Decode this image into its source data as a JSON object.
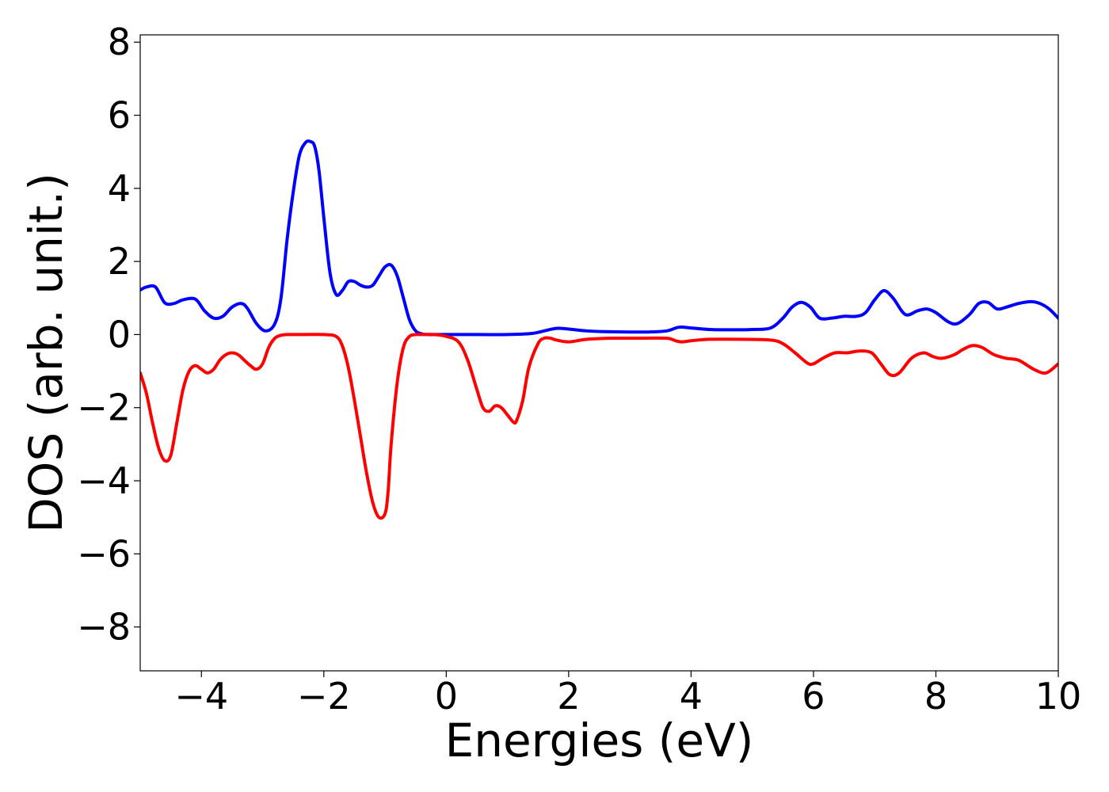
{
  "chart_data": {
    "type": "line",
    "title": "",
    "xlabel": "Energies (eV)",
    "ylabel": "DOS (arb. unit.)",
    "xlim": [
      -5,
      10
    ],
    "ylim": [
      -9.2,
      8.2
    ],
    "grid": false,
    "legend": "none",
    "x_ticks": [
      -4,
      -2,
      0,
      2,
      4,
      6,
      8,
      10
    ],
    "x_tick_labels": [
      "−4",
      "−2",
      "0",
      "2",
      "4",
      "6",
      "8",
      "10"
    ],
    "y_ticks": [
      -8,
      -6,
      -4,
      -2,
      0,
      2,
      4,
      6,
      8
    ],
    "y_tick_labels": [
      "−8",
      "−6",
      "−4",
      "−2",
      "0",
      "2",
      "4",
      "6",
      "8"
    ],
    "series": [
      {
        "color": "#0000ff",
        "x": [
          -5.0,
          -4.9,
          -4.75,
          -4.6,
          -4.45,
          -4.3,
          -4.1,
          -3.95,
          -3.8,
          -3.65,
          -3.5,
          -3.35,
          -3.25,
          -3.1,
          -2.95,
          -2.8,
          -2.7,
          -2.6,
          -2.5,
          -2.4,
          -2.3,
          -2.22,
          -2.15,
          -2.08,
          -2.0,
          -1.9,
          -1.8,
          -1.7,
          -1.6,
          -1.5,
          -1.4,
          -1.3,
          -1.2,
          -1.1,
          -1.0,
          -0.9,
          -0.8,
          -0.7,
          -0.6,
          -0.5,
          -0.4,
          -0.3,
          -0.2,
          0.0,
          0.5,
          1.0,
          1.4,
          1.6,
          1.8,
          2.0,
          2.3,
          2.6,
          3.0,
          3.3,
          3.6,
          3.8,
          4.0,
          4.3,
          4.7,
          5.0,
          5.3,
          5.5,
          5.65,
          5.8,
          5.95,
          6.1,
          6.3,
          6.5,
          6.7,
          6.85,
          7.0,
          7.15,
          7.3,
          7.5,
          7.7,
          7.85,
          8.0,
          8.2,
          8.35,
          8.55,
          8.7,
          8.85,
          9.0,
          9.15,
          9.35,
          9.55,
          9.7,
          9.85,
          10.0
        ],
        "y": [
          1.22,
          1.3,
          1.3,
          0.87,
          0.85,
          0.95,
          0.97,
          0.65,
          0.45,
          0.5,
          0.75,
          0.85,
          0.72,
          0.3,
          0.1,
          0.3,
          1.0,
          2.6,
          3.9,
          4.9,
          5.25,
          5.28,
          5.15,
          4.5,
          3.2,
          1.7,
          1.1,
          1.2,
          1.45,
          1.45,
          1.35,
          1.3,
          1.35,
          1.6,
          1.85,
          1.9,
          1.6,
          1.0,
          0.4,
          0.1,
          0.02,
          0.0,
          0.0,
          0.0,
          0.0,
          0.0,
          0.03,
          0.1,
          0.17,
          0.15,
          0.1,
          0.08,
          0.07,
          0.07,
          0.1,
          0.2,
          0.18,
          0.14,
          0.13,
          0.14,
          0.18,
          0.45,
          0.75,
          0.88,
          0.75,
          0.45,
          0.45,
          0.5,
          0.5,
          0.6,
          0.95,
          1.2,
          1.0,
          0.55,
          0.65,
          0.7,
          0.6,
          0.35,
          0.3,
          0.55,
          0.85,
          0.88,
          0.7,
          0.75,
          0.85,
          0.9,
          0.85,
          0.7,
          0.45
        ]
      },
      {
        "color": "#ff0000",
        "x": [
          -5.0,
          -4.9,
          -4.8,
          -4.7,
          -4.6,
          -4.5,
          -4.4,
          -4.3,
          -4.2,
          -4.1,
          -4.0,
          -3.9,
          -3.8,
          -3.7,
          -3.6,
          -3.5,
          -3.4,
          -3.3,
          -3.2,
          -3.1,
          -3.0,
          -2.9,
          -2.8,
          -2.7,
          -2.6,
          -2.5,
          -2.4,
          -2.0,
          -1.8,
          -1.7,
          -1.6,
          -1.5,
          -1.4,
          -1.3,
          -1.2,
          -1.1,
          -1.0,
          -0.95,
          -0.9,
          -0.8,
          -0.7,
          -0.6,
          -0.5,
          -0.4,
          -0.2,
          0.0,
          0.2,
          0.35,
          0.5,
          0.6,
          0.7,
          0.8,
          0.9,
          1.0,
          1.1,
          1.15,
          1.25,
          1.35,
          1.5,
          1.6,
          1.7,
          1.8,
          2.0,
          2.3,
          2.7,
          3.2,
          3.6,
          3.75,
          3.85,
          4.0,
          4.3,
          4.8,
          5.3,
          5.5,
          5.7,
          5.9,
          6.0,
          6.15,
          6.35,
          6.55,
          6.75,
          6.95,
          7.1,
          7.25,
          7.4,
          7.6,
          7.8,
          7.95,
          8.1,
          8.3,
          8.45,
          8.6,
          8.75,
          8.95,
          9.15,
          9.35,
          9.6,
          9.8,
          10.0
        ],
        "y": [
          -1.05,
          -1.6,
          -2.4,
          -3.1,
          -3.45,
          -3.3,
          -2.4,
          -1.5,
          -1.0,
          -0.85,
          -0.95,
          -1.05,
          -0.95,
          -0.7,
          -0.55,
          -0.5,
          -0.55,
          -0.7,
          -0.85,
          -0.95,
          -0.8,
          -0.35,
          -0.1,
          -0.02,
          0.0,
          0.0,
          0.0,
          0.0,
          -0.05,
          -0.3,
          -0.9,
          -1.8,
          -2.8,
          -3.8,
          -4.6,
          -5.0,
          -4.9,
          -4.3,
          -3.0,
          -1.3,
          -0.35,
          -0.05,
          0.0,
          0.0,
          0.0,
          -0.05,
          -0.2,
          -0.7,
          -1.5,
          -2.0,
          -2.1,
          -1.95,
          -2.0,
          -2.2,
          -2.4,
          -2.35,
          -1.8,
          -0.9,
          -0.25,
          -0.1,
          -0.1,
          -0.15,
          -0.2,
          -0.13,
          -0.1,
          -0.1,
          -0.1,
          -0.17,
          -0.2,
          -0.17,
          -0.13,
          -0.13,
          -0.15,
          -0.25,
          -0.5,
          -0.78,
          -0.8,
          -0.65,
          -0.5,
          -0.5,
          -0.45,
          -0.5,
          -0.8,
          -1.1,
          -1.05,
          -0.65,
          -0.5,
          -0.6,
          -0.65,
          -0.55,
          -0.4,
          -0.3,
          -0.35,
          -0.55,
          -0.65,
          -0.7,
          -0.95,
          -1.05,
          -0.8
        ]
      }
    ]
  }
}
